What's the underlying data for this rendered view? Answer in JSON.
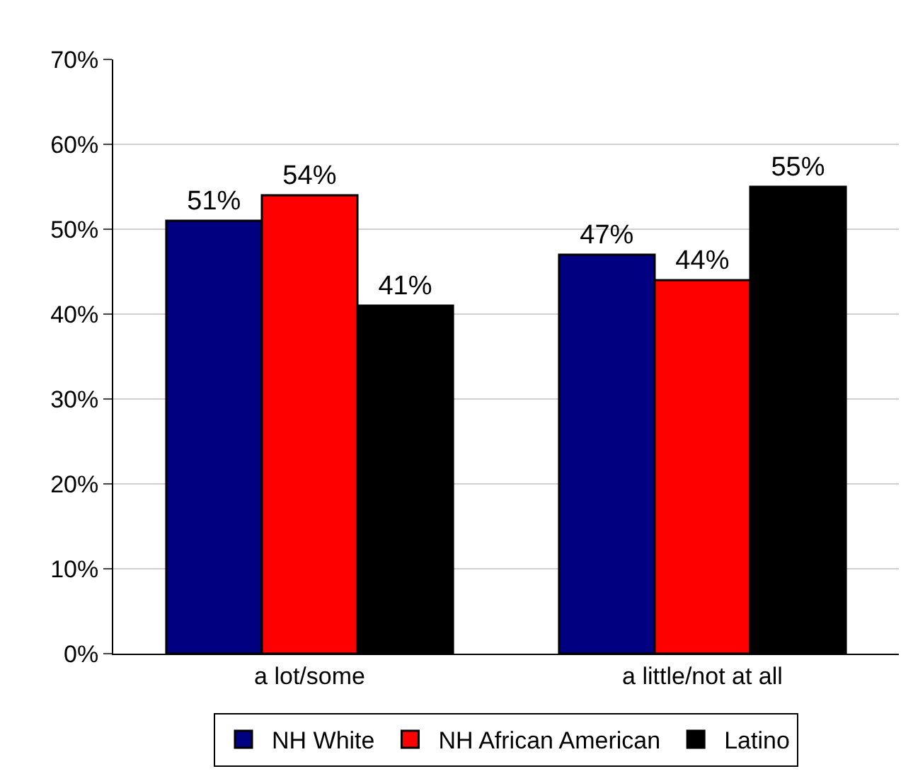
{
  "chart_data": {
    "type": "bar",
    "categories": [
      "a lot/some",
      "a little/not at all"
    ],
    "series": [
      {
        "name": "NH White",
        "color": "#000080",
        "values": [
          51,
          47
        ],
        "value_labels": [
          "51%",
          "47%"
        ]
      },
      {
        "name": "NH African American",
        "color": "#ff0000",
        "values": [
          54,
          44
        ],
        "value_labels": [
          "54%",
          "44%"
        ]
      },
      {
        "name": "Latino",
        "color": "#000000",
        "values": [
          41,
          55
        ],
        "value_labels": [
          "41%",
          "55%"
        ]
      }
    ],
    "ylim": [
      0,
      70
    ],
    "yticks": [
      {
        "value": 0,
        "label": "0%"
      },
      {
        "value": 10,
        "label": "10%"
      },
      {
        "value": 20,
        "label": "20%"
      },
      {
        "value": 30,
        "label": "30%"
      },
      {
        "value": 40,
        "label": "40%"
      },
      {
        "value": 50,
        "label": "50%"
      },
      {
        "value": 60,
        "label": "60%"
      },
      {
        "value": 70,
        "label": "70%"
      }
    ],
    "grid": "y",
    "legend": "bottom"
  }
}
